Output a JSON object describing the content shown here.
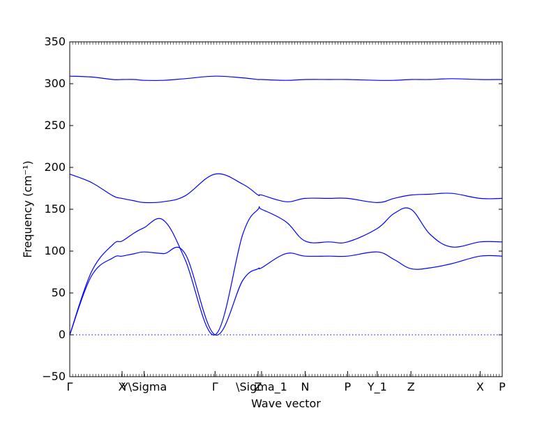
{
  "chart_data": {
    "type": "line",
    "xlabel": "Wave vector",
    "ylabel": "Frequency (cm⁻¹)",
    "ylim": [
      -50,
      350
    ],
    "y_ticks": [
      -50,
      0,
      50,
      100,
      150,
      200,
      250,
      300,
      350
    ],
    "grid": false,
    "legend": "none",
    "line_color": "#0000ff",
    "zero_line": {
      "y": 0,
      "style": "dotted",
      "color": "#0000ff"
    },
    "k_points": [
      {
        "label": "Γ",
        "pos": 0.0
      },
      {
        "label": "X",
        "pos": 0.726
      },
      {
        "label": "Y\\Sigma",
        "pos": 1.032
      },
      {
        "label": "Γ",
        "pos": 2.016
      },
      {
        "label": "Z",
        "pos": 2.613
      },
      {
        "label": "\\Sigma_1",
        "pos": 2.661
      },
      {
        "label": "N",
        "pos": 3.266
      },
      {
        "label": "P",
        "pos": 3.855
      },
      {
        "label": "Y_1",
        "pos": 4.266
      },
      {
        "label": "Z",
        "pos": 4.734
      },
      {
        "label": "X",
        "pos": 5.694
      },
      {
        "label": "P",
        "pos": 6.0
      }
    ],
    "xlim": [
      0,
      6.0
    ],
    "series": [
      {
        "x": [
          0,
          0.3,
          0.6,
          0.726,
          0.9,
          1.032,
          1.3,
          1.6,
          2.016,
          2.4,
          2.613,
          2.661,
          3.0,
          3.266,
          3.6,
          3.855,
          4.266,
          4.5,
          4.734,
          5.0,
          5.3,
          5.694,
          6.0
        ],
        "values": [
          0,
          70,
          92,
          94,
          97,
          99,
          97,
          97,
          0,
          65,
          79,
          80,
          97,
          94,
          94,
          94,
          99,
          90,
          79,
          80,
          85,
          94,
          94
        ]
      },
      {
        "x": [
          0,
          0.3,
          0.6,
          0.726,
          0.9,
          1.032,
          1.3,
          1.6,
          2.016,
          2.4,
          2.613,
          2.661,
          3.0,
          3.266,
          3.6,
          3.855,
          4.266,
          4.5,
          4.734,
          5.0,
          5.3,
          5.694,
          6.0
        ],
        "values": [
          0,
          75,
          108,
          112,
          122,
          128,
          137,
          90,
          0,
          120,
          150,
          150,
          135,
          112,
          111,
          111,
          127,
          145,
          150,
          120,
          105,
          111,
          111
        ]
      },
      {
        "x": [
          0,
          0.3,
          0.6,
          0.726,
          0.9,
          1.032,
          1.3,
          1.6,
          2.016,
          2.4,
          2.613,
          2.661,
          3.0,
          3.266,
          3.6,
          3.855,
          4.266,
          4.5,
          4.734,
          5.0,
          5.3,
          5.694,
          6.0
        ],
        "values": [
          192,
          182,
          166,
          163,
          160,
          158,
          159,
          166,
          192,
          180,
          167,
          167,
          159,
          163,
          163,
          163,
          158,
          163,
          167,
          168,
          169,
          163,
          163
        ]
      },
      {
        "x": [
          0,
          0.3,
          0.6,
          0.726,
          0.9,
          1.032,
          1.3,
          1.6,
          2.016,
          2.4,
          2.613,
          2.661,
          3.0,
          3.266,
          3.6,
          3.855,
          4.266,
          4.5,
          4.734,
          5.0,
          5.3,
          5.694,
          6.0
        ],
        "values": [
          309,
          308,
          305,
          305,
          305,
          304,
          304,
          306,
          309,
          307,
          305,
          305,
          304,
          305,
          305,
          305,
          304,
          304,
          305,
          305,
          306,
          305,
          305
        ]
      }
    ]
  }
}
